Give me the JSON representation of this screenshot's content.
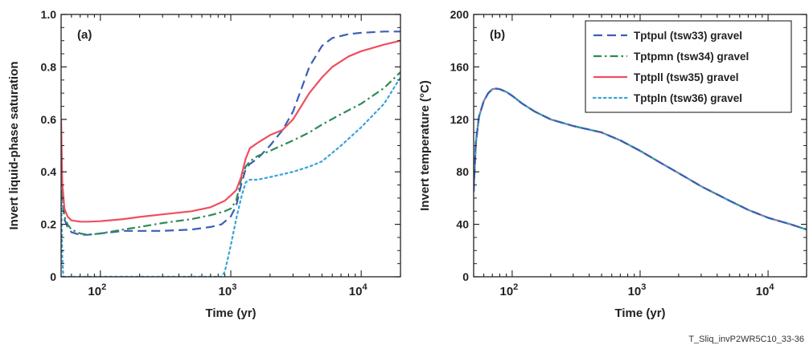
{
  "footer": {
    "figure_id": "T_Sliq_invP2WR5C10_33-36"
  },
  "colors": {
    "tptpul": "#3b5fb5",
    "tptpmn": "#2e8b57",
    "tptpll": "#ef4f5e",
    "tptpln": "#36a3db"
  },
  "chart_data": [
    {
      "type": "line",
      "panel_label": "(a)",
      "xlabel": "Time (yr)",
      "ylabel": "Invert liquid-phase saturation",
      "x_scale": "log",
      "xlim": [
        50,
        20000
      ],
      "ylim": [
        0,
        1.0
      ],
      "x_ticks": [
        {
          "value": 100,
          "base": "10",
          "exp": "2"
        },
        {
          "value": 1000,
          "base": "10",
          "exp": "3"
        },
        {
          "value": 10000,
          "base": "10",
          "exp": "4"
        }
      ],
      "y_ticks": [
        {
          "value": 0,
          "label": "0"
        },
        {
          "value": 0.2,
          "label": "0.2"
        },
        {
          "value": 0.4,
          "label": "0.4"
        },
        {
          "value": 0.6,
          "label": "0.6"
        },
        {
          "value": 0.8,
          "label": "0.8"
        },
        {
          "value": 1.0,
          "label": "1.0"
        }
      ],
      "series": [
        {
          "key": "tptpul",
          "style": "dash",
          "x": [
            50,
            51,
            53,
            56,
            60,
            70,
            80,
            100,
            150,
            200,
            300,
            500,
            700,
            850,
            1000,
            1100,
            1200,
            1300,
            1400,
            1600,
            2000,
            2500,
            3000,
            3500,
            4000,
            5000,
            6000,
            8000,
            10000,
            15000,
            20000
          ],
          "y": [
            0.48,
            0.3,
            0.22,
            0.19,
            0.17,
            0.16,
            0.16,
            0.165,
            0.175,
            0.175,
            0.175,
            0.18,
            0.19,
            0.2,
            0.23,
            0.27,
            0.35,
            0.41,
            0.43,
            0.45,
            0.5,
            0.56,
            0.63,
            0.72,
            0.8,
            0.88,
            0.91,
            0.925,
            0.93,
            0.935,
            0.935
          ]
        },
        {
          "key": "tptpmn",
          "style": "dashdot",
          "x": [
            50,
            51,
            53,
            56,
            60,
            70,
            80,
            100,
            150,
            200,
            300,
            500,
            700,
            900,
            1000,
            1100,
            1200,
            1300,
            1400,
            1600,
            2000,
            3000,
            4000,
            5000,
            7000,
            10000,
            15000,
            20000
          ],
          "y": [
            0.52,
            0.31,
            0.23,
            0.2,
            0.18,
            0.165,
            0.16,
            0.165,
            0.18,
            0.19,
            0.205,
            0.22,
            0.235,
            0.25,
            0.26,
            0.29,
            0.37,
            0.42,
            0.44,
            0.46,
            0.48,
            0.52,
            0.55,
            0.58,
            0.62,
            0.66,
            0.72,
            0.78
          ]
        },
        {
          "key": "tptpll",
          "style": "solid",
          "x": [
            50,
            51,
            53,
            56,
            60,
            70,
            80,
            100,
            150,
            200,
            300,
            500,
            700,
            900,
            1000,
            1100,
            1200,
            1300,
            1400,
            1600,
            2000,
            2500,
            3000,
            4000,
            5000,
            6000,
            8000,
            10000,
            15000,
            20000
          ],
          "y": [
            0.6,
            0.36,
            0.26,
            0.23,
            0.215,
            0.21,
            0.21,
            0.212,
            0.22,
            0.228,
            0.238,
            0.25,
            0.265,
            0.29,
            0.31,
            0.33,
            0.38,
            0.45,
            0.49,
            0.51,
            0.54,
            0.56,
            0.6,
            0.7,
            0.76,
            0.8,
            0.84,
            0.86,
            0.885,
            0.9
          ]
        },
        {
          "key": "tptpln",
          "style": "dot",
          "x": [
            50,
            51,
            52,
            55,
            60,
            100,
            200,
            500,
            850,
            900,
            1000,
            1100,
            1200,
            1300,
            1400,
            1600,
            2000,
            3000,
            4000,
            5000,
            7000,
            10000,
            15000,
            20000
          ],
          "y": [
            0.32,
            0.08,
            0.0,
            0.0,
            0.0,
            0.0,
            0.0,
            0.0,
            0.0,
            0.02,
            0.12,
            0.22,
            0.3,
            0.36,
            0.37,
            0.37,
            0.38,
            0.4,
            0.42,
            0.44,
            0.5,
            0.57,
            0.66,
            0.76
          ]
        }
      ]
    },
    {
      "type": "line",
      "panel_label": "(b)",
      "xlabel": "Time (yr)",
      "ylabel": "Invert temperature (°C)",
      "x_scale": "log",
      "xlim": [
        50,
        20000
      ],
      "ylim": [
        0,
        200
      ],
      "x_ticks": [
        {
          "value": 100,
          "base": "10",
          "exp": "2"
        },
        {
          "value": 1000,
          "base": "10",
          "exp": "3"
        },
        {
          "value": 10000,
          "base": "10",
          "exp": "4"
        }
      ],
      "y_ticks": [
        {
          "value": 0,
          "label": "0"
        },
        {
          "value": 40,
          "label": "40"
        },
        {
          "value": 80,
          "label": "80"
        },
        {
          "value": 120,
          "label": "120"
        },
        {
          "value": 160,
          "label": "160"
        },
        {
          "value": 200,
          "label": "200"
        }
      ],
      "legend": {
        "position": "top-right",
        "entries": [
          {
            "key": "tptpul",
            "style": "dash",
            "label": "Tptpul (tsw33) gravel"
          },
          {
            "key": "tptpmn",
            "style": "dashdot",
            "label": "Tptpmn (tsw34) gravel"
          },
          {
            "key": "tptpll",
            "style": "solid",
            "label": "Tptpll (tsw35) gravel"
          },
          {
            "key": "tptpln",
            "style": "dot",
            "label": "Tptpln (tsw36) gravel"
          }
        ]
      },
      "series": [
        {
          "key": "tptpll",
          "style": "solid",
          "x": [
            50,
            52,
            55,
            60,
            65,
            70,
            75,
            80,
            90,
            100,
            120,
            150,
            200,
            300,
            500,
            700,
            1000,
            1500,
            2000,
            3000,
            5000,
            7000,
            10000,
            15000,
            20000
          ],
          "y": [
            65,
            102,
            122,
            134,
            140,
            143,
            143.5,
            143,
            141,
            138,
            132,
            126,
            120,
            115,
            110,
            104,
            96,
            86,
            79,
            69,
            58,
            51,
            45,
            40,
            36
          ]
        },
        {
          "key": "tptpmn",
          "style": "dashdot",
          "x": [
            50,
            52,
            55,
            60,
            65,
            70,
            75,
            80,
            90,
            100,
            120,
            150,
            200,
            300,
            500,
            700,
            1000,
            1500,
            2000,
            3000,
            5000,
            7000,
            10000,
            15000,
            20000
          ],
          "y": [
            65,
            102,
            122,
            134,
            140,
            143,
            143.5,
            143,
            141,
            138,
            132,
            126,
            120,
            115,
            110,
            104,
            96,
            86,
            79,
            69,
            58,
            51,
            45,
            40,
            36
          ]
        },
        {
          "key": "tptpln",
          "style": "dot",
          "x": [
            50,
            52,
            55,
            60,
            65,
            70,
            75,
            80,
            90,
            100,
            120,
            150,
            200,
            300,
            500,
            700,
            1000,
            1500,
            2000,
            3000,
            5000,
            7000,
            10000,
            15000,
            20000
          ],
          "y": [
            65,
            102,
            122,
            134,
            140,
            143,
            143.5,
            143,
            141,
            138,
            132,
            126,
            120,
            115,
            110,
            104,
            96,
            86,
            79,
            69,
            58,
            51,
            45,
            40,
            36
          ]
        },
        {
          "key": "tptpul",
          "style": "dash",
          "x": [
            50,
            52,
            55,
            60,
            65,
            70,
            75,
            80,
            90,
            100,
            120,
            150,
            200,
            300,
            500,
            700,
            1000,
            1500,
            2000,
            3000,
            5000,
            7000,
            10000,
            15000,
            20000
          ],
          "y": [
            65,
            102,
            122,
            134,
            140,
            143,
            143.5,
            143,
            141,
            138,
            132,
            126,
            120,
            115,
            110,
            104,
            96,
            86,
            79,
            69,
            58,
            51,
            45,
            40,
            36
          ]
        }
      ]
    }
  ]
}
